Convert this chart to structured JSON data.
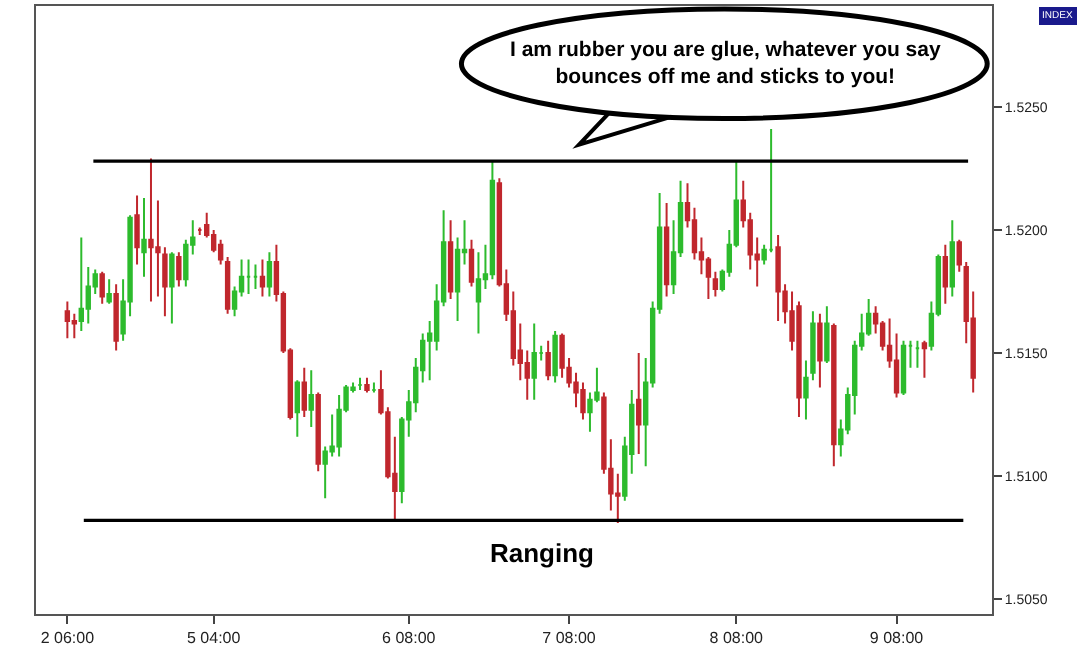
{
  "chart_data": {
    "type": "candlestick",
    "categories": [
      "2 06:00",
      null,
      null,
      null,
      null,
      null,
      null,
      null,
      null,
      null,
      null,
      null,
      null,
      null,
      null,
      null,
      null,
      null,
      null,
      null,
      null,
      "5 04:00",
      null,
      null,
      null,
      null,
      null,
      null,
      null,
      null,
      null,
      null,
      null,
      null,
      null,
      null,
      null,
      null,
      null,
      null,
      null,
      null,
      null,
      null,
      null,
      null,
      null,
      null,
      null,
      "6 08:00",
      null,
      null,
      null,
      null,
      null,
      null,
      null,
      null,
      null,
      null,
      null,
      null,
      null,
      null,
      null,
      null,
      null,
      null,
      null,
      null,
      null,
      null,
      "7 08:00",
      null,
      null,
      null,
      null,
      null,
      null,
      null,
      null,
      null,
      null,
      null,
      null,
      null,
      null,
      null,
      null,
      null,
      null,
      null,
      null,
      null,
      null,
      null,
      "8 08:00",
      null,
      null,
      null,
      null,
      null,
      null,
      null,
      null,
      null,
      null,
      null,
      null,
      null,
      null,
      null,
      null,
      null,
      null,
      null,
      null,
      null,
      null,
      "9 08:00",
      null,
      null,
      null,
      null,
      null,
      null,
      null,
      null,
      null,
      null,
      null
    ],
    "ohlc": [
      [
        1.5167,
        1.5171,
        1.5156,
        1.5163
      ],
      [
        1.5163,
        1.5166,
        1.5156,
        1.5162
      ],
      [
        1.5163,
        1.5197,
        1.5159,
        1.5168
      ],
      [
        1.5168,
        1.5185,
        1.5162,
        1.5177
      ],
      [
        1.5177,
        1.5184,
        1.5174,
        1.5182
      ],
      [
        1.5182,
        1.5183,
        1.517,
        1.5173
      ],
      [
        1.5171,
        1.518,
        1.517,
        1.5174
      ],
      [
        1.5174,
        1.5178,
        1.5151,
        1.5155
      ],
      [
        1.5158,
        1.518,
        1.5155,
        1.5171
      ],
      [
        1.5171,
        1.5206,
        1.5165,
        1.5205
      ],
      [
        1.5206,
        1.5214,
        1.5186,
        1.5193
      ],
      [
        1.5191,
        1.5213,
        1.5181,
        1.5196
      ],
      [
        1.5196,
        1.5229,
        1.5171,
        1.5193
      ],
      [
        1.5193,
        1.5212,
        1.5173,
        1.5191
      ],
      [
        1.519,
        1.5193,
        1.5165,
        1.5177
      ],
      [
        1.5177,
        1.5191,
        1.5162,
        1.519
      ],
      [
        1.5189,
        1.5191,
        1.5177,
        1.518
      ],
      [
        1.518,
        1.5196,
        1.5177,
        1.5194
      ],
      [
        1.5194,
        1.5204,
        1.519,
        1.5197
      ],
      [
        1.52,
        1.5201,
        1.5198,
        1.52
      ],
      [
        1.5202,
        1.5207,
        1.5197,
        1.5198
      ],
      [
        1.5198,
        1.52,
        1.5191,
        1.5192
      ],
      [
        1.5194,
        1.5196,
        1.5186,
        1.5188
      ],
      [
        1.5187,
        1.5189,
        1.5166,
        1.5168
      ],
      [
        1.5168,
        1.5177,
        1.5165,
        1.5175
      ],
      [
        1.5175,
        1.5188,
        1.5173,
        1.5181
      ],
      [
        1.5181,
        1.5188,
        1.5174,
        1.5181
      ],
      [
        1.5181,
        1.5186,
        1.5176,
        1.5181
      ],
      [
        1.5181,
        1.5188,
        1.5173,
        1.5177
      ],
      [
        1.5177,
        1.5191,
        1.5173,
        1.5187
      ],
      [
        1.5187,
        1.5194,
        1.5171,
        1.5174
      ],
      [
        1.5174,
        1.5175,
        1.515,
        1.5151
      ],
      [
        1.5151,
        1.5152,
        1.5123,
        1.5124
      ],
      [
        1.5126,
        1.5139,
        1.5116,
        1.5138
      ],
      [
        1.5138,
        1.5144,
        1.5124,
        1.5127
      ],
      [
        1.5127,
        1.5143,
        1.512,
        1.5133
      ],
      [
        1.5133,
        1.5134,
        1.5102,
        1.5105
      ],
      [
        1.5105,
        1.5112,
        1.5091,
        1.511
      ],
      [
        1.511,
        1.5125,
        1.5108,
        1.5112
      ],
      [
        1.5112,
        1.5133,
        1.5108,
        1.5127
      ],
      [
        1.5127,
        1.5137,
        1.5126,
        1.5136
      ],
      [
        1.5135,
        1.5138,
        1.5134,
        1.5136
      ],
      [
        1.5137,
        1.514,
        1.5135,
        1.5137
      ],
      [
        1.5137,
        1.514,
        1.5134,
        1.5135
      ],
      [
        1.5135,
        1.5138,
        1.5134,
        1.5135
      ],
      [
        1.5135,
        1.5143,
        1.5125,
        1.5126
      ],
      [
        1.5126,
        1.5128,
        1.5099,
        1.51
      ],
      [
        1.5101,
        1.5116,
        1.5082,
        1.5094
      ],
      [
        1.5094,
        1.5124,
        1.5089,
        1.5123
      ],
      [
        1.5123,
        1.5135,
        1.5116,
        1.513
      ],
      [
        1.513,
        1.5148,
        1.5126,
        1.5144
      ],
      [
        1.5143,
        1.5158,
        1.5138,
        1.5155
      ],
      [
        1.5155,
        1.5163,
        1.5139,
        1.5158
      ],
      [
        1.5155,
        1.5178,
        1.5151,
        1.5171
      ],
      [
        1.5171,
        1.5208,
        1.5169,
        1.5195
      ],
      [
        1.5195,
        1.5204,
        1.5172,
        1.5175
      ],
      [
        1.5175,
        1.5197,
        1.5163,
        1.5192
      ],
      [
        1.5191,
        1.5204,
        1.5186,
        1.5192
      ],
      [
        1.5192,
        1.5196,
        1.5177,
        1.5179
      ],
      [
        1.5171,
        1.5191,
        1.5158,
        1.518
      ],
      [
        1.518,
        1.5194,
        1.5176,
        1.5182
      ],
      [
        1.5182,
        1.5228,
        1.518,
        1.522
      ],
      [
        1.5219,
        1.5221,
        1.5177,
        1.5178
      ],
      [
        1.5178,
        1.5184,
        1.5163,
        1.5166
      ],
      [
        1.5167,
        1.5175,
        1.5145,
        1.5148
      ],
      [
        1.5151,
        1.5162,
        1.5139,
        1.5146
      ],
      [
        1.5146,
        1.5151,
        1.5131,
        1.514
      ],
      [
        1.514,
        1.5162,
        1.5131,
        1.515
      ],
      [
        1.515,
        1.5153,
        1.5147,
        1.515
      ],
      [
        1.515,
        1.5155,
        1.5139,
        1.5141
      ],
      [
        1.5141,
        1.5159,
        1.5138,
        1.5157
      ],
      [
        1.5157,
        1.5158,
        1.514,
        1.5144
      ],
      [
        1.5144,
        1.5148,
        1.5136,
        1.5138
      ],
      [
        1.5138,
        1.5142,
        1.5128,
        1.5134
      ],
      [
        1.5135,
        1.5138,
        1.5123,
        1.5126
      ],
      [
        1.5126,
        1.5134,
        1.5118,
        1.5131
      ],
      [
        1.5131,
        1.5144,
        1.513,
        1.5134
      ],
      [
        1.5132,
        1.5134,
        1.5101,
        1.5103
      ],
      [
        1.5103,
        1.5115,
        1.5086,
        1.5093
      ],
      [
        1.5093,
        1.5101,
        1.5081,
        1.5092
      ],
      [
        1.5092,
        1.5116,
        1.509,
        1.5112
      ],
      [
        1.5109,
        1.5135,
        1.5101,
        1.5129
      ],
      [
        1.5131,
        1.515,
        1.5109,
        1.5121
      ],
      [
        1.5121,
        1.5148,
        1.5104,
        1.5138
      ],
      [
        1.5138,
        1.5171,
        1.5136,
        1.5168
      ],
      [
        1.5168,
        1.5215,
        1.5166,
        1.5201
      ],
      [
        1.5201,
        1.5211,
        1.5173,
        1.5178
      ],
      [
        1.5178,
        1.5204,
        1.5174,
        1.5191
      ],
      [
        1.5191,
        1.522,
        1.5189,
        1.5211
      ],
      [
        1.5211,
        1.5219,
        1.5201,
        1.5204
      ],
      [
        1.5204,
        1.5209,
        1.5188,
        1.5191
      ],
      [
        1.5191,
        1.5197,
        1.5182,
        1.5188
      ],
      [
        1.5188,
        1.5189,
        1.5172,
        1.5181
      ],
      [
        1.518,
        1.5183,
        1.5173,
        1.5176
      ],
      [
        1.5176,
        1.5184,
        1.5175,
        1.5183
      ],
      [
        1.5183,
        1.52,
        1.5181,
        1.5194
      ],
      [
        1.5194,
        1.5228,
        1.5193,
        1.5212
      ],
      [
        1.5212,
        1.522,
        1.5201,
        1.5204
      ],
      [
        1.5204,
        1.5207,
        1.5184,
        1.519
      ],
      [
        1.519,
        1.5197,
        1.5177,
        1.5188
      ],
      [
        1.5188,
        1.5194,
        1.5186,
        1.5192
      ],
      [
        1.5192,
        1.5241,
        1.5191,
        1.5192
      ],
      [
        1.5193,
        1.5198,
        1.5163,
        1.5175
      ],
      [
        1.5175,
        1.5178,
        1.5162,
        1.5167
      ],
      [
        1.5167,
        1.5175,
        1.5151,
        1.5155
      ],
      [
        1.5169,
        1.5171,
        1.5124,
        1.5132
      ],
      [
        1.5132,
        1.5147,
        1.5123,
        1.514
      ],
      [
        1.5142,
        1.5167,
        1.5139,
        1.5162
      ],
      [
        1.5162,
        1.5166,
        1.5136,
        1.5147
      ],
      [
        1.5147,
        1.5169,
        1.5146,
        1.5162
      ],
      [
        1.5161,
        1.5162,
        1.5104,
        1.5113
      ],
      [
        1.5113,
        1.5123,
        1.5108,
        1.5119
      ],
      [
        1.5119,
        1.5136,
        1.5117,
        1.5133
      ],
      [
        1.5133,
        1.5155,
        1.5125,
        1.5153
      ],
      [
        1.5153,
        1.5166,
        1.5151,
        1.5158
      ],
      [
        1.5158,
        1.5172,
        1.5157,
        1.5166
      ],
      [
        1.5166,
        1.5169,
        1.5158,
        1.5162
      ],
      [
        1.5162,
        1.5163,
        1.5151,
        1.5153
      ],
      [
        1.5153,
        1.5164,
        1.5144,
        1.5147
      ],
      [
        1.5147,
        1.5158,
        1.5132,
        1.5134
      ],
      [
        1.5134,
        1.5155,
        1.5133,
        1.5153
      ],
      [
        1.5153,
        1.5155,
        1.5144,
        1.5153
      ],
      [
        1.5152,
        1.5155,
        1.5144,
        1.5152
      ],
      [
        1.5154,
        1.5155,
        1.514,
        1.5152
      ],
      [
        1.5153,
        1.5171,
        1.5151,
        1.5166
      ],
      [
        1.5166,
        1.519,
        1.5165,
        1.5189
      ],
      [
        1.5189,
        1.5194,
        1.517,
        1.5177
      ],
      [
        1.5177,
        1.5204,
        1.5173,
        1.5195
      ],
      [
        1.5195,
        1.5196,
        1.5183,
        1.5186
      ],
      [
        1.5185,
        1.5187,
        1.5154,
        1.5163
      ],
      [
        1.5164,
        1.5175,
        1.5134,
        1.514
      ]
    ],
    "colors": [
      "#c0272d",
      "#c0272d",
      "#2dbb2d",
      "#2dbb2d",
      "#2dbb2d",
      "#c0272d",
      "#2dbb2d",
      "#c0272d",
      "#2dbb2d",
      "#2dbb2d",
      "#c0272d",
      "#2dbb2d",
      "#c0272d",
      "#c0272d",
      "#c0272d",
      "#2dbb2d",
      "#c0272d",
      "#2dbb2d",
      "#2dbb2d",
      "#c0272d",
      "#c0272d",
      "#c0272d",
      "#c0272d",
      "#c0272d",
      "#2dbb2d",
      "#2dbb2d",
      "#2dbb2d",
      "#2dbb2d",
      "#c0272d",
      "#2dbb2d",
      "#c0272d",
      "#c0272d",
      "#c0272d",
      "#2dbb2d",
      "#c0272d",
      "#2dbb2d",
      "#c0272d",
      "#2dbb2d",
      "#2dbb2d",
      "#2dbb2d",
      "#2dbb2d",
      "#2dbb2d",
      "#2dbb2d",
      "#c0272d",
      "#2dbb2d",
      "#c0272d",
      "#c0272d",
      "#c0272d",
      "#2dbb2d",
      "#2dbb2d",
      "#2dbb2d",
      "#2dbb2d",
      "#2dbb2d",
      "#2dbb2d",
      "#2dbb2d",
      "#c0272d",
      "#2dbb2d",
      "#2dbb2d",
      "#c0272d",
      "#2dbb2d",
      "#2dbb2d",
      "#2dbb2d",
      "#c0272d",
      "#c0272d",
      "#c0272d",
      "#c0272d",
      "#c0272d",
      "#2dbb2d",
      "#2dbb2d",
      "#c0272d",
      "#2dbb2d",
      "#c0272d",
      "#c0272d",
      "#c0272d",
      "#c0272d",
      "#2dbb2d",
      "#2dbb2d",
      "#c0272d",
      "#c0272d",
      "#c0272d",
      "#2dbb2d",
      "#2dbb2d",
      "#c0272d",
      "#2dbb2d",
      "#2dbb2d",
      "#2dbb2d",
      "#c0272d",
      "#2dbb2d",
      "#2dbb2d",
      "#c0272d",
      "#c0272d",
      "#c0272d",
      "#c0272d",
      "#c0272d",
      "#2dbb2d",
      "#2dbb2d",
      "#2dbb2d",
      "#c0272d",
      "#c0272d",
      "#c0272d",
      "#2dbb2d",
      "#2dbb2d",
      "#c0272d",
      "#c0272d",
      "#c0272d",
      "#c0272d",
      "#2dbb2d",
      "#2dbb2d",
      "#c0272d",
      "#2dbb2d",
      "#c0272d",
      "#2dbb2d",
      "#2dbb2d",
      "#2dbb2d",
      "#2dbb2d",
      "#2dbb2d",
      "#c0272d",
      "#c0272d",
      "#c0272d",
      "#c0272d",
      "#2dbb2d",
      "#2dbb2d",
      "#2dbb2d",
      "#c0272d",
      "#2dbb2d",
      "#2dbb2d",
      "#c0272d",
      "#2dbb2d",
      "#c0272d",
      "#c0272d",
      "#c0272d"
    ],
    "ylim": [
      1.5044,
      1.5291
    ],
    "yticks": [
      {
        "value": 1.505,
        "label": "1.5050"
      },
      {
        "value": 1.51,
        "label": "1.5100"
      },
      {
        "value": 1.515,
        "label": "1.5150"
      },
      {
        "value": 1.52,
        "label": "1.5200"
      },
      {
        "value": 1.525,
        "label": "1.5250"
      }
    ],
    "ref_lines": [
      {
        "axis": "y",
        "value": 1.5228,
        "color": "#000000"
      },
      {
        "axis": "y",
        "value": 1.5082,
        "color": "#000000"
      }
    ],
    "annotations": [
      "I am rubber you are glue, whatever you say\nbounces off me and sticks to you!",
      "Ranging",
      "INDEX"
    ]
  }
}
